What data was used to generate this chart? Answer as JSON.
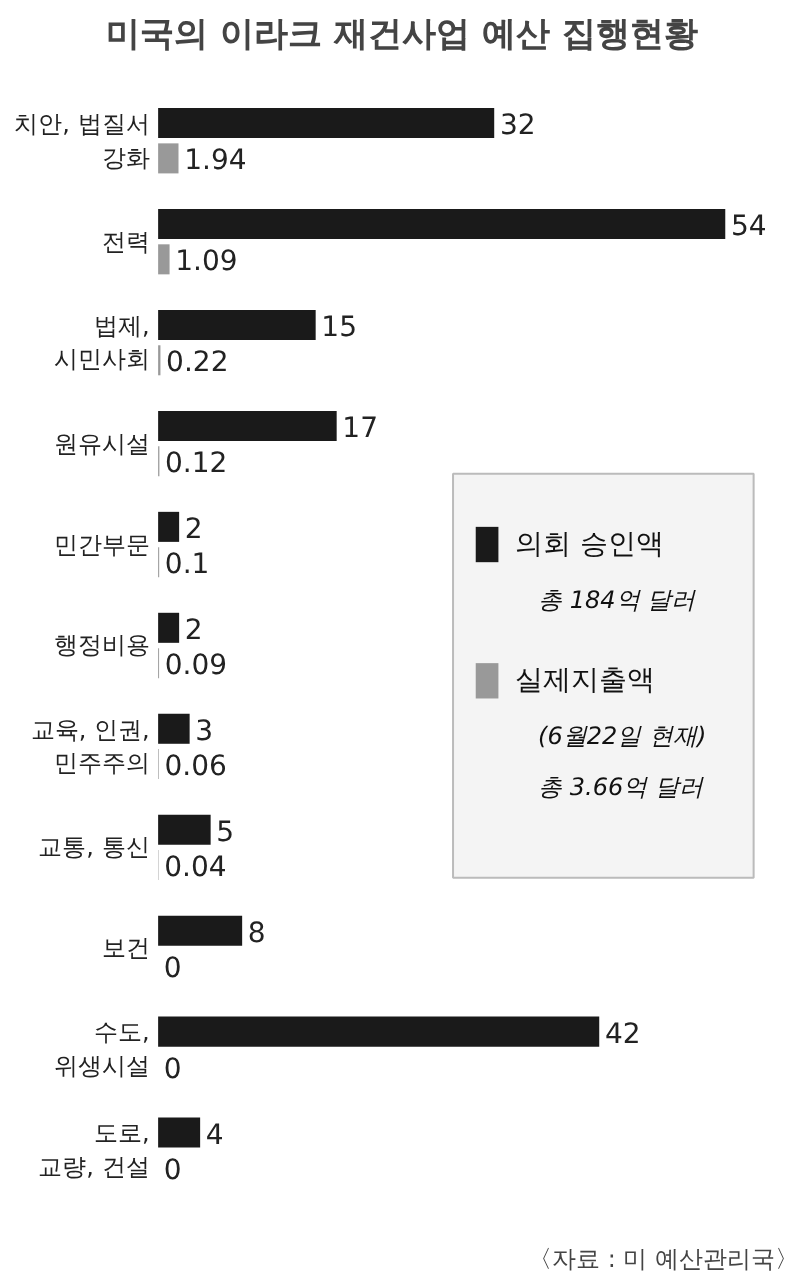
{
  "chart_data": {
    "type": "bar",
    "orientation": "horizontal",
    "title": "미국의 이라크 재건사업 예산 집행현황",
    "categories": [
      "치안, 법질서\n강화",
      "전력",
      "법제,\n시민사회",
      "원유시설",
      "민간부문",
      "행정비용",
      "교육, 인권,\n민주주의",
      "교통, 통신",
      "보건",
      "수도,\n위생시설",
      "도로,\n교량, 건설"
    ],
    "series": [
      {
        "name": "의회 승인액",
        "color": "#1a1a1a",
        "values": [
          32,
          54,
          15,
          17,
          2,
          2,
          3,
          5,
          8,
          42,
          4
        ]
      },
      {
        "name": "실제지출액",
        "color": "#999999",
        "values": [
          1.94,
          1.09,
          0.22,
          0.12,
          0.1,
          0.09,
          0.06,
          0.04,
          0,
          0,
          0
        ]
      }
    ],
    "data_labels": true,
    "legend": "right",
    "grid": false,
    "annotations": [
      "총 184억 달러",
      "(6월22일 현재)",
      "총 3.66억 달러",
      "〈자료 : 미 예산관리국〉"
    ]
  }
}
